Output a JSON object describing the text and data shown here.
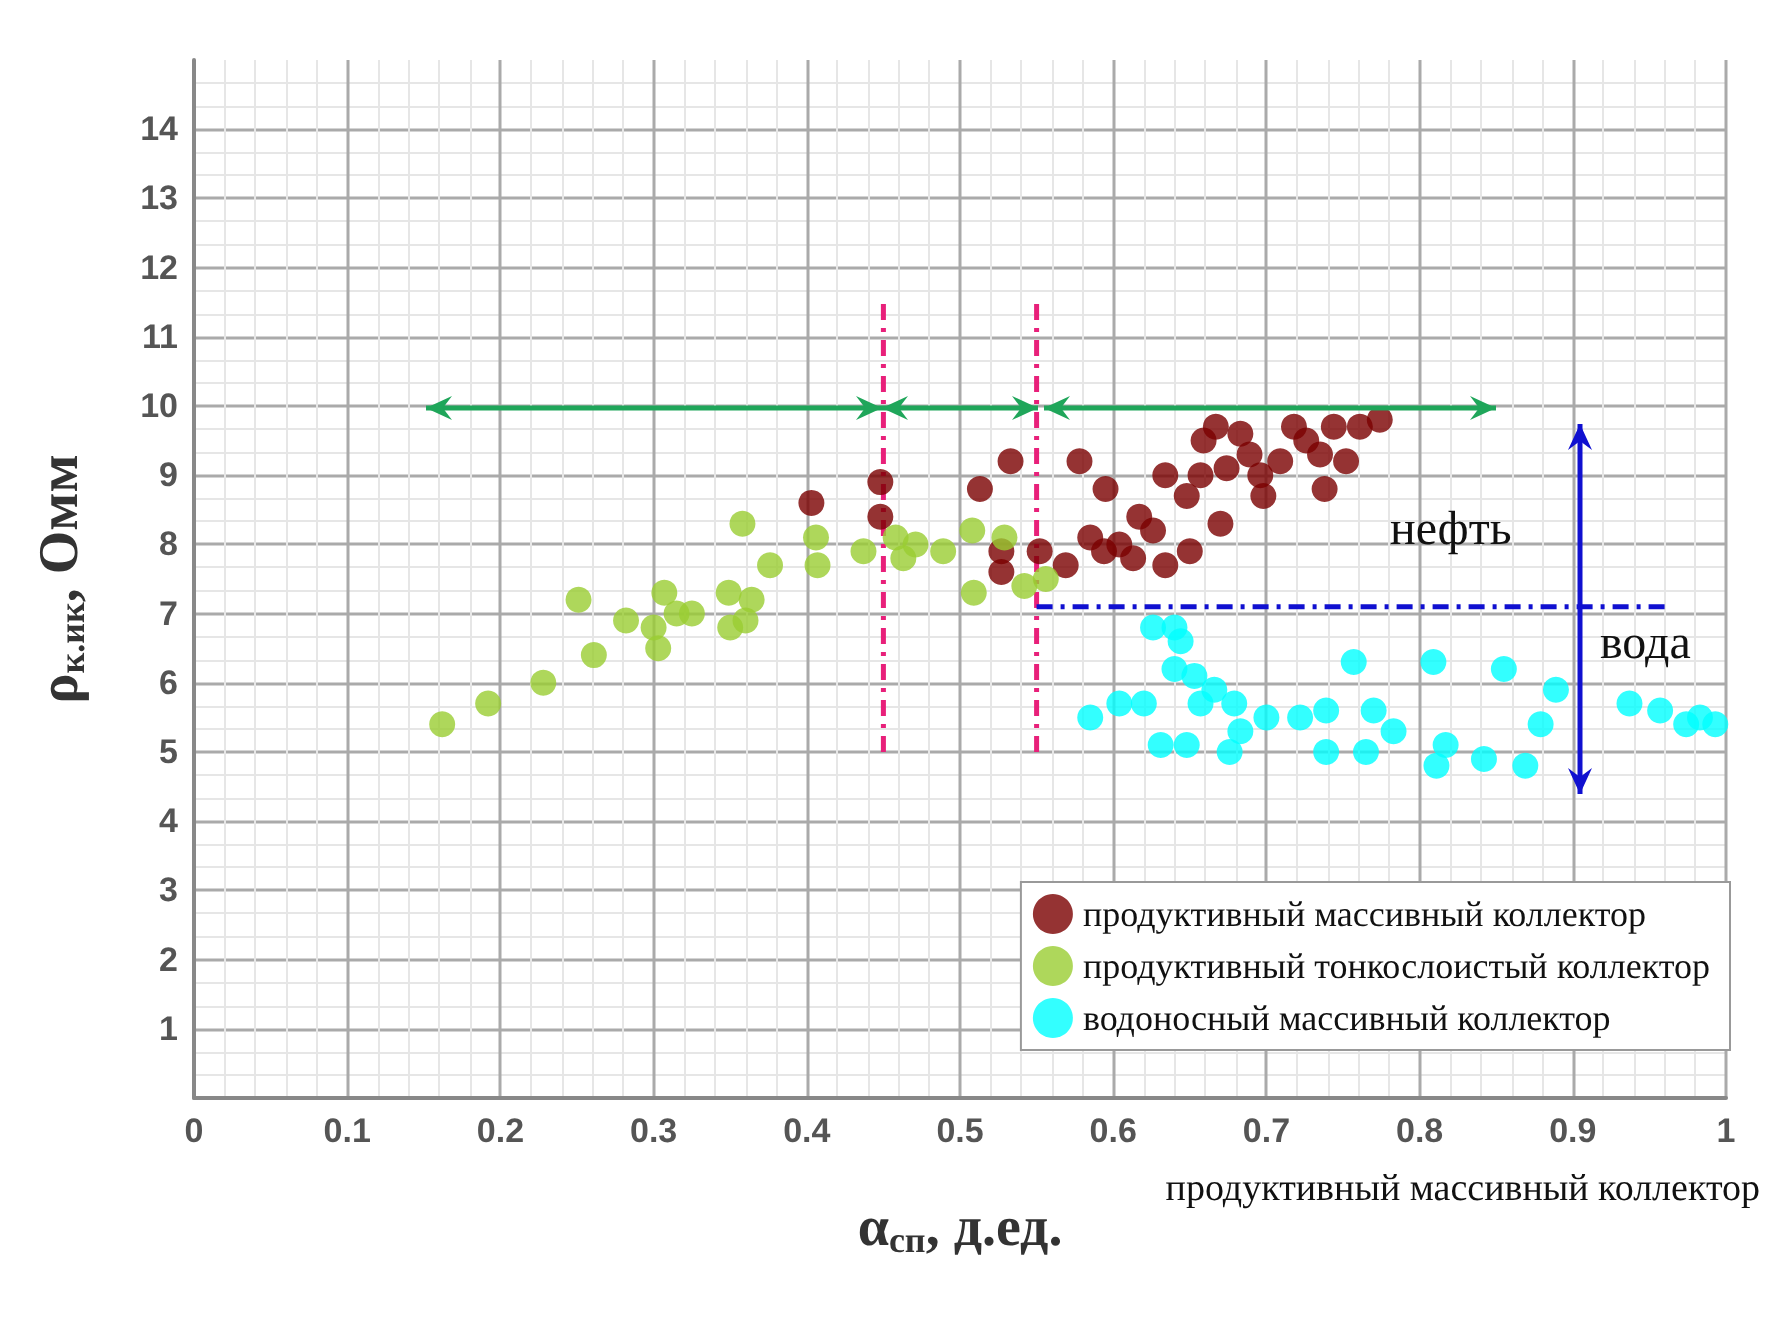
{
  "chart_data": {
    "type": "scatter",
    "xlabel": "α$_{сп}$, д.ед.",
    "ylabel": "ρ$_{к.ик}$, Омм",
    "xlim": [
      0,
      1
    ],
    "xticks": [
      0,
      0.1,
      0.2,
      0.3,
      0.4,
      0.5,
      0.6,
      0.7,
      0.8,
      0.9,
      1
    ],
    "ylim": [
      0,
      15
    ],
    "yticks": [
      {
        "value": 0,
        "label": null
      },
      1,
      2,
      3,
      4,
      5,
      6,
      7,
      8,
      9,
      10,
      11,
      12,
      13,
      14
    ],
    "grid": true,
    "legend": "bottom right",
    "marker": "circle",
    "series": [
      {
        "name": "продуктивный массивный коллектор",
        "color": "#7b0000",
        "x": [
          0.403,
          0.448,
          0.448,
          0.533,
          0.513,
          0.527,
          0.527,
          0.552,
          0.561,
          0.569,
          0.578,
          0.595,
          0.585,
          0.594,
          0.604,
          0.613,
          0.617,
          0.626,
          0.634,
          0.65,
          0.634,
          0.648,
          0.659,
          0.657,
          0.67,
          0.674,
          0.683,
          0.689,
          0.696,
          0.698,
          0.709,
          0.718,
          0.726,
          0.735,
          0.738,
          0.744,
          0.752,
          0.761,
          0.774,
          0.667
        ],
        "values": [
          8.6,
          8.9,
          8.4,
          9.2,
          8.8,
          7.9,
          7.6,
          7.9,
          null,
          7.7,
          9.2,
          8.8,
          8.1,
          7.9,
          8.0,
          7.8,
          8.4,
          8.2,
          7.7,
          7.9,
          9.0,
          8.7,
          9.5,
          9.0,
          8.3,
          9.1,
          9.6,
          9.3,
          9.0,
          8.7,
          9.2,
          9.7,
          9.5,
          9.3,
          8.8,
          9.7,
          9.2,
          9.7,
          9.8,
          9.7
        ]
      },
      {
        "name": "продуктивный тонкослоистый коллектор",
        "color": "#9acd32",
        "x": [
          0.162,
          0.192,
          0.228,
          0.261,
          0.251,
          0.282,
          0.303,
          0.3,
          0.307,
          0.315,
          0.325,
          0.349,
          0.35,
          0.364,
          0.36,
          0.358,
          0.376,
          0.406,
          0.407,
          0.437,
          0.458,
          0.463,
          0.471,
          0.489,
          0.508,
          0.509,
          0.529,
          0.542,
          0.556
        ],
        "values": [
          5.4,
          5.7,
          6.0,
          6.4,
          7.2,
          6.9,
          6.5,
          6.8,
          7.3,
          7.0,
          7.0,
          7.3,
          6.8,
          7.2,
          6.9,
          8.3,
          7.7,
          8.1,
          7.7,
          7.9,
          8.1,
          7.8,
          8.0,
          7.9,
          8.2,
          7.3,
          8.1,
          7.4,
          7.5
        ]
      },
      {
        "name": "водоносный массивный коллектор",
        "color": "#00ffff",
        "x": [
          0.626,
          0.64,
          0.644,
          0.64,
          0.653,
          0.666,
          0.679,
          0.657,
          0.585,
          0.604,
          0.62,
          0.631,
          0.648,
          0.676,
          0.683,
          0.7,
          0.722,
          0.739,
          0.77,
          0.783,
          0.739,
          0.765,
          0.757,
          0.809,
          0.855,
          0.889,
          0.879,
          0.817,
          0.811,
          0.842,
          0.869,
          0.937,
          0.957,
          0.974,
          0.993,
          0.983
        ],
        "values": [
          6.8,
          6.8,
          6.6,
          6.2,
          6.1,
          5.9,
          5.7,
          5.7,
          5.5,
          5.7,
          5.7,
          5.1,
          5.1,
          5.0,
          5.3,
          5.5,
          5.5,
          5.6,
          5.6,
          5.3,
          5.0,
          5.0,
          6.3,
          6.3,
          6.2,
          5.9,
          5.4,
          5.1,
          4.8,
          4.9,
          4.8,
          5.7,
          5.6,
          5.4,
          5.4,
          5.5
        ]
      },
      {
        "type": "line",
        "color": "#e8207a",
        "line_style": "dashed",
        "marker": "none",
        "x": [
          0.45,
          0.45
        ],
        "values": [
          5.0,
          11.5
        ]
      },
      {
        "type": "line",
        "color": "#e8207a",
        "line_style": "dashed",
        "marker": "none",
        "x": [
          0.55,
          0.55
        ],
        "values": [
          5.0,
          11.5
        ]
      },
      {
        "type": "line",
        "color": "#1010d0",
        "line_style": "dashed",
        "marker": "none",
        "x": [
          0.55,
          0.96
        ],
        "values": [
          7.1,
          7.1
        ]
      }
    ],
    "annotations": [
      "нефть",
      "вода",
      "продуктивный массивный коллектор"
    ]
  }
}
